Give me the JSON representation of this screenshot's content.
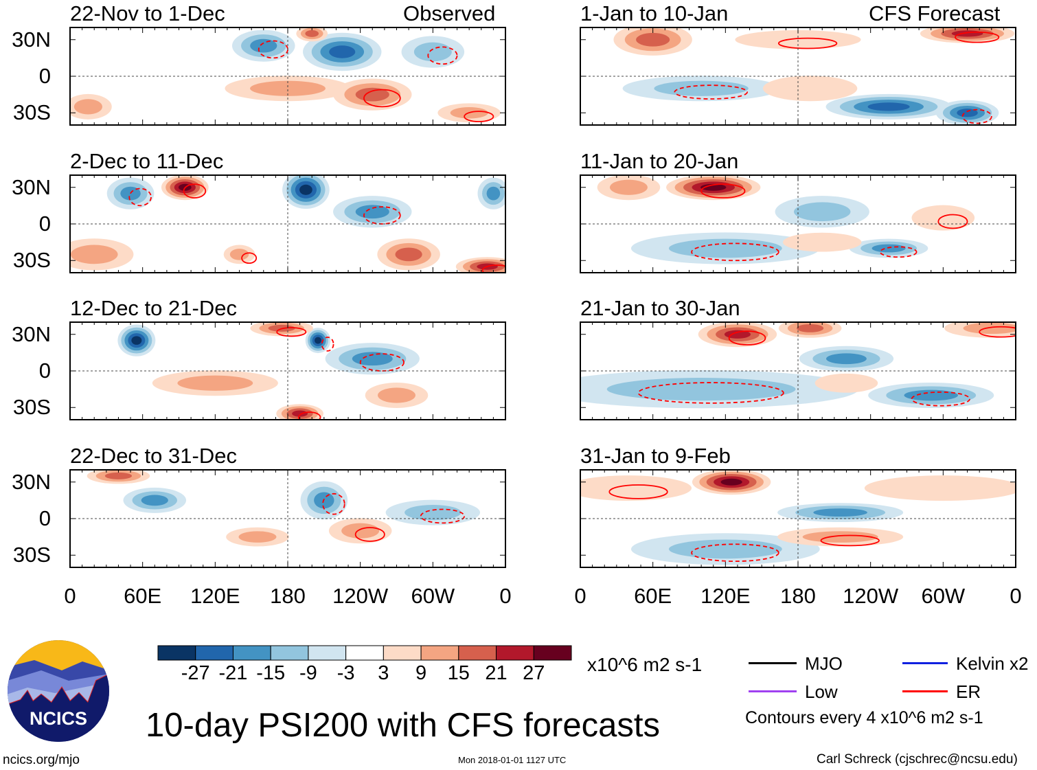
{
  "header": {
    "observed_label": "Observed",
    "forecast_label": "CFS Forecast"
  },
  "lat_labels": [
    "30N",
    "0",
    "30S"
  ],
  "lon_labels": [
    "0",
    "60E",
    "120E",
    "180",
    "120W",
    "60W",
    "0"
  ],
  "colorbar": {
    "colors": [
      "#0a3464",
      "#2166ac",
      "#4393c3",
      "#92c5de",
      "#d1e5f0",
      "#ffffff",
      "#fddbc7",
      "#f4a582",
      "#d6604d",
      "#b2182b",
      "#67001f"
    ],
    "labels": [
      "-27",
      "-21",
      "-15",
      "-9",
      "-3",
      "3",
      "9",
      "15",
      "21",
      "27"
    ],
    "units": "x10^6 m2 s-1"
  },
  "legend": {
    "items": [
      {
        "label": "MJO",
        "color": "#000000"
      },
      {
        "label": "Low",
        "color": "#a040f0"
      },
      {
        "label": "Kelvin x2",
        "color": "#1020e0"
      },
      {
        "label": "ER",
        "color": "#ff0000"
      }
    ],
    "contour_note": "Contours every 4 x10^6 m2 s-1"
  },
  "title": "10-day PSI200 with CFS forecasts",
  "footer": {
    "site": "ncics.org/mjo",
    "timestamp": "Mon 2018-01-01 1127 UTC",
    "author": "Carl Schreck (cjschrec@ncsu.edu)"
  },
  "logo": {
    "text": "NCICS"
  },
  "chart_data": {
    "type": "heatmap",
    "lon_range": [
      0,
      360
    ],
    "lat_range": [
      -40,
      40
    ],
    "panels": [
      {
        "title": "22-Nov to 1-Dec",
        "kind": "observed",
        "features": [
          [
            160,
            25,
            -20,
            20,
            10
          ],
          [
            225,
            20,
            -24,
            25,
            12
          ],
          [
            300,
            20,
            -9,
            20,
            10
          ],
          [
            180,
            -10,
            10,
            40,
            8
          ],
          [
            250,
            -15,
            18,
            25,
            10
          ],
          [
            200,
            35,
            21,
            10,
            5
          ],
          [
            330,
            -30,
            15,
            20,
            6
          ],
          [
            15,
            -25,
            10,
            15,
            8
          ]
        ]
      },
      {
        "title": "2-Dec to 11-Dec",
        "kind": "observed",
        "features": [
          [
            50,
            25,
            -15,
            15,
            10
          ],
          [
            350,
            25,
            -15,
            10,
            10
          ],
          [
            250,
            10,
            -18,
            25,
            10
          ],
          [
            195,
            28,
            -30,
            15,
            12
          ],
          [
            95,
            30,
            28,
            15,
            8
          ],
          [
            20,
            -25,
            15,
            25,
            10
          ],
          [
            140,
            -25,
            15,
            10,
            6
          ],
          [
            280,
            -25,
            21,
            20,
            10
          ],
          [
            345,
            -35,
            27,
            20,
            6
          ]
        ]
      },
      {
        "title": "12-Dec to 21-Dec",
        "kind": "observed",
        "features": [
          [
            250,
            10,
            -15,
            30,
            10
          ],
          [
            55,
            25,
            -27,
            12,
            10
          ],
          [
            205,
            25,
            -27,
            8,
            8
          ],
          [
            120,
            -10,
            10,
            40,
            8
          ],
          [
            175,
            35,
            21,
            20,
            5
          ],
          [
            270,
            -20,
            15,
            20,
            8
          ],
          [
            190,
            -35,
            27,
            15,
            6
          ]
        ]
      },
      {
        "title": "22-Dec to 31-Dec",
        "kind": "observed",
        "features": [
          [
            300,
            5,
            -9,
            30,
            8
          ],
          [
            70,
            15,
            -15,
            20,
            8
          ],
          [
            210,
            15,
            -15,
            15,
            12
          ],
          [
            40,
            35,
            21,
            20,
            5
          ],
          [
            240,
            -10,
            15,
            20,
            8
          ],
          [
            155,
            -15,
            15,
            20,
            6
          ]
        ]
      },
      {
        "title": "1-Jan to 10-Jan",
        "kind": "forecast",
        "features": [
          [
            100,
            -10,
            -9,
            50,
            8
          ],
          [
            255,
            -25,
            -21,
            40,
            8
          ],
          [
            320,
            -30,
            -21,
            20,
            8
          ],
          [
            190,
            -10,
            9,
            30,
            8
          ],
          [
            180,
            30,
            9,
            40,
            6
          ],
          [
            60,
            30,
            21,
            25,
            10
          ],
          [
            320,
            35,
            27,
            30,
            6
          ]
        ]
      },
      {
        "title": "11-Jan to 20-Jan",
        "kind": "forecast",
        "features": [
          [
            120,
            -20,
            -9,
            60,
            10
          ],
          [
            200,
            10,
            -9,
            30,
            10
          ],
          [
            255,
            -20,
            -15,
            25,
            6
          ],
          [
            200,
            -15,
            9,
            25,
            6
          ],
          [
            300,
            5,
            9,
            20,
            8
          ],
          [
            40,
            30,
            15,
            20,
            8
          ],
          [
            110,
            30,
            30,
            30,
            8
          ]
        ]
      },
      {
        "title": "21-Jan to 30-Jan",
        "kind": "forecast",
        "features": [
          [
            100,
            -15,
            -9,
            100,
            12
          ],
          [
            220,
            10,
            -15,
            30,
            8
          ],
          [
            290,
            -20,
            -15,
            40,
            8
          ],
          [
            220,
            -10,
            9,
            20,
            6
          ],
          [
            340,
            35,
            15,
            30,
            6
          ],
          [
            190,
            35,
            21,
            20,
            6
          ],
          [
            130,
            30,
            27,
            25,
            8
          ]
        ]
      },
      {
        "title": "31-Jan to 9-Feb",
        "kind": "forecast",
        "features": [
          [
            120,
            -25,
            -9,
            60,
            10
          ],
          [
            215,
            5,
            -15,
            40,
            6
          ],
          [
            215,
            -15,
            15,
            40,
            6
          ],
          [
            300,
            25,
            9,
            50,
            8
          ],
          [
            40,
            25,
            9,
            40,
            8
          ],
          [
            125,
            30,
            30,
            25,
            8
          ]
        ]
      }
    ]
  }
}
